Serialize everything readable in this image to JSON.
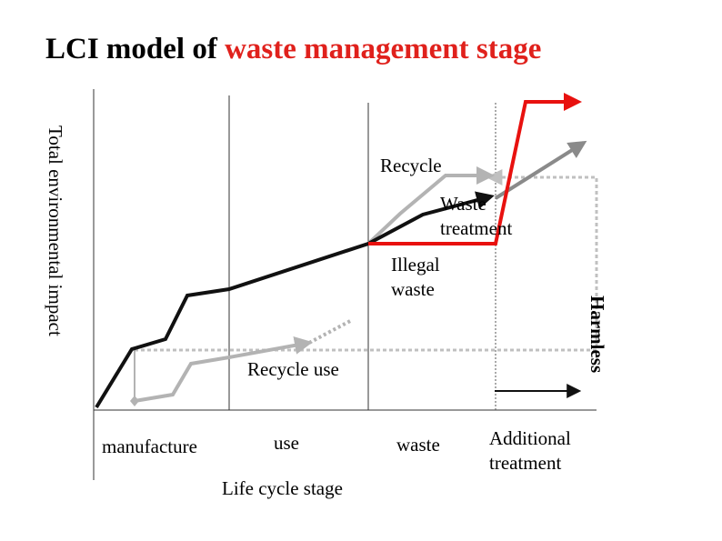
{
  "title": {
    "prefix": "LCI model of ",
    "highlight": "waste management stage"
  },
  "axes": {
    "y_label": "Total environmental impact",
    "x_label": "Life cycle stage"
  },
  "stages": [
    "manufacture",
    "use",
    "waste",
    "Additional treatment"
  ],
  "path_labels": {
    "recycle": "Recycle",
    "waste_treatment": "Waste treatment",
    "illegal_waste": "Illegal waste",
    "recycle_use": "Recycle use",
    "harmless": "Harmless"
  },
  "colors": {
    "title_accent": "#e0211c",
    "illegal_waste": "#e8110f",
    "recycle": "#b3b3b3",
    "waste_treatment": "#111111",
    "treated": "#8a8a8a",
    "recycle_use": "#b3b3b3",
    "harmless_dotted": "#c0c0c0"
  }
}
